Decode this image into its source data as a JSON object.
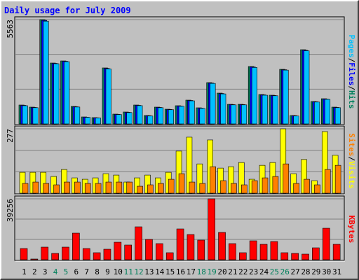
{
  "chart_data": [
    {
      "type": "bar",
      "title": "Daily usage for July 2009",
      "legend_separator": "/",
      "ylim": [
        0,
        5563
      ],
      "yticks": [
        5563
      ],
      "series": [
        {
          "name": "Hits",
          "color": "#00805c",
          "values": [
            1008,
            896,
            5563,
            3248,
            3360,
            933,
            373,
            336,
            2987,
            523,
            635,
            1008,
            448,
            896,
            784,
            971,
            1269,
            859,
            2203,
            1643,
            1045,
            1045,
            3061,
            1568,
            1531,
            2912,
            448,
            3958,
            1195,
            1344,
            896
          ]
        },
        {
          "name": "Files",
          "color": "#0000ff",
          "values": [
            990,
            880,
            5520,
            3230,
            3340,
            915,
            360,
            325,
            2960,
            510,
            620,
            990,
            435,
            880,
            770,
            955,
            1250,
            845,
            2180,
            1620,
            1030,
            1030,
            3040,
            1550,
            1515,
            2890,
            435,
            3930,
            1180,
            1325,
            880
          ]
        },
        {
          "name": "Pages",
          "color": "#00c0ff",
          "values": [
            970,
            865,
            5480,
            3210,
            3320,
            900,
            350,
            315,
            2930,
            500,
            605,
            975,
            420,
            865,
            755,
            940,
            1230,
            830,
            2160,
            1600,
            1015,
            1015,
            3010,
            1530,
            1500,
            2870,
            420,
            3900,
            1165,
            1310,
            865
          ]
        }
      ]
    },
    {
      "type": "bar",
      "ylim": [
        0,
        277
      ],
      "yticks": [
        277
      ],
      "series": [
        {
          "name": "Visits",
          "color": "#ffff00",
          "values": [
            90,
            90,
            90,
            72,
            102,
            66,
            60,
            66,
            84,
            78,
            48,
            66,
            78,
            66,
            90,
            181,
            241,
            126,
            229,
            108,
            114,
            132,
            60,
            120,
            132,
            277,
            84,
            145,
            54,
            265,
            163
          ]
        },
        {
          "name": "Sites",
          "color": "#ff8000",
          "values": [
            42,
            48,
            42,
            36,
            48,
            48,
            42,
            42,
            48,
            48,
            48,
            30,
            36,
            42,
            60,
            84,
            48,
            42,
            114,
            54,
            42,
            36,
            54,
            66,
            72,
            126,
            42,
            60,
            36,
            102,
            120
          ]
        }
      ]
    },
    {
      "type": "bar",
      "ylim": [
        0,
        39256
      ],
      "yticks": [
        39256
      ],
      "series": [
        {
          "name": "KBytes",
          "color": "#ff0000",
          "values": [
            7216,
            451,
            8118,
            4059,
            8118,
            17138,
            7216,
            4510,
            6765,
            11275,
            9471,
            21197,
            13079,
            10373,
            4510,
            19844,
            16236,
            12628,
            39256,
            17589,
            10373,
            4510,
            12177,
            9922,
            11726,
            4510,
            4059,
            3608,
            7667,
            20295,
            9922
          ]
        }
      ],
      "categories": [
        "1",
        "2",
        "3",
        "4",
        "5",
        "6",
        "7",
        "8",
        "9",
        "10",
        "11",
        "12",
        "13",
        "14",
        "15",
        "16",
        "17",
        "18",
        "19",
        "20",
        "21",
        "22",
        "23",
        "24",
        "25",
        "26",
        "27",
        "28",
        "29",
        "30",
        "31"
      ],
      "category_colors": [
        "#000000",
        "#000000",
        "#000000",
        "#00805c",
        "#00805c",
        "#000000",
        "#000000",
        "#000000",
        "#000000",
        "#000000",
        "#00805c",
        "#00805c",
        "#000000",
        "#000000",
        "#000000",
        "#000000",
        "#000000",
        "#00805c",
        "#00805c",
        "#000000",
        "#000000",
        "#000000",
        "#000000",
        "#000000",
        "#00805c",
        "#00805c",
        "#000000",
        "#000000",
        "#000000",
        "#000000",
        "#000000"
      ]
    }
  ]
}
